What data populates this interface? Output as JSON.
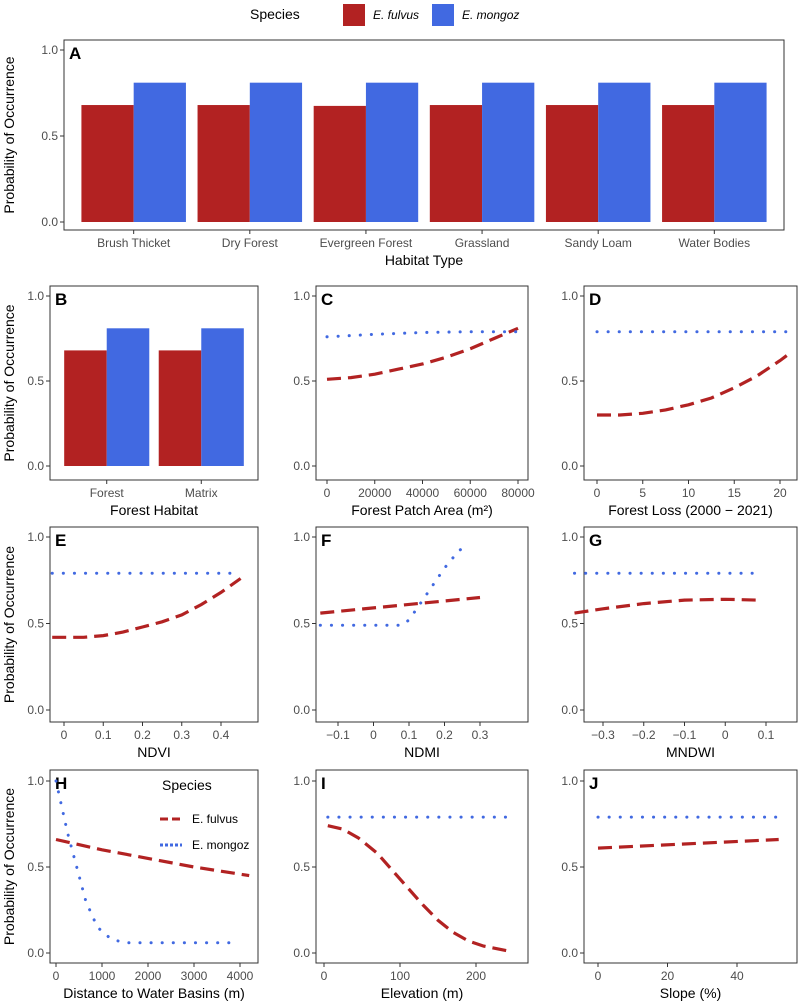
{
  "colors": {
    "E. fulvus": "#B22222",
    "E. mongoz": "#4169E1"
  },
  "legend": {
    "title": "Species",
    "items": [
      "E. fulvus",
      "E. mongoz"
    ],
    "placement": "top"
  },
  "chart_data": [
    {
      "panel": "A",
      "type": "bar",
      "xlabel": "Habitat Type",
      "ylabel": "Probability of Occurrence",
      "ylim": [
        0,
        1
      ],
      "yticks": [
        "0.0",
        "0.5",
        "1.0"
      ],
      "categories": [
        "Brush Thicket",
        "Dry Forest",
        "Evergreen Forest",
        "Grassland",
        "Sandy Loam",
        "Water Bodies"
      ],
      "series": [
        {
          "name": "E. fulvus",
          "values": [
            0.68,
            0.68,
            0.675,
            0.68,
            0.68,
            0.68
          ]
        },
        {
          "name": "E. mongoz",
          "values": [
            0.81,
            0.81,
            0.81,
            0.81,
            0.81,
            0.81
          ]
        }
      ]
    },
    {
      "panel": "B",
      "type": "bar",
      "xlabel": "Forest Habitat",
      "ylabel": "Probability of Occurrence",
      "ylim": [
        0,
        1
      ],
      "yticks": [
        "0.0",
        "0.5",
        "1.0"
      ],
      "categories": [
        "Forest",
        "Matrix"
      ],
      "series": [
        {
          "name": "E. fulvus",
          "values": [
            0.68,
            0.68
          ]
        },
        {
          "name": "E. mongoz",
          "values": [
            0.81,
            0.81
          ]
        }
      ]
    },
    {
      "panel": "C",
      "type": "line",
      "xlabel": "Forest Patch Area (m²)",
      "ylabel": "",
      "ylim": [
        0,
        1
      ],
      "yticks": [
        "0.0",
        "0.5",
        "1.0"
      ],
      "xticks": [
        0,
        20000,
        40000,
        60000,
        80000
      ],
      "series": [
        {
          "name": "E. fulvus",
          "x": [
            0,
            10000,
            20000,
            30000,
            40000,
            50000,
            60000,
            70000,
            80000
          ],
          "y": [
            0.51,
            0.52,
            0.54,
            0.57,
            0.6,
            0.64,
            0.69,
            0.75,
            0.81
          ]
        },
        {
          "name": "E. mongoz",
          "x": [
            0,
            20000,
            40000,
            60000,
            80000
          ],
          "y": [
            0.76,
            0.775,
            0.785,
            0.79,
            0.79
          ]
        }
      ]
    },
    {
      "panel": "D",
      "type": "line",
      "xlabel": "Forest Loss (2000 − 2021)",
      "ylabel": "",
      "ylim": [
        0,
        1
      ],
      "yticks": [
        "0.0",
        "0.5",
        "1.0"
      ],
      "xticks": [
        0,
        5,
        10,
        15,
        20
      ],
      "series": [
        {
          "name": "E. fulvus",
          "x": [
            0,
            2.5,
            5,
            7.5,
            10,
            12.5,
            15,
            17.5,
            20,
            21
          ],
          "y": [
            0.3,
            0.3,
            0.31,
            0.33,
            0.36,
            0.4,
            0.46,
            0.53,
            0.62,
            0.66
          ]
        },
        {
          "name": "E. mongoz",
          "x": [
            0,
            21
          ],
          "y": [
            0.79,
            0.79
          ]
        }
      ]
    },
    {
      "panel": "E",
      "type": "line",
      "xlabel": "NDVI",
      "ylabel": "Probability of Occurrence",
      "ylim": [
        0,
        1
      ],
      "yticks": [
        "0.0",
        "0.5",
        "1.0"
      ],
      "xticks": [
        0.0,
        0.1,
        0.2,
        0.3,
        0.4
      ],
      "series": [
        {
          "name": "E. fulvus",
          "x": [
            -0.03,
            0.05,
            0.1,
            0.15,
            0.2,
            0.25,
            0.3,
            0.35,
            0.4,
            0.45
          ],
          "y": [
            0.42,
            0.42,
            0.43,
            0.45,
            0.48,
            0.51,
            0.55,
            0.61,
            0.68,
            0.76
          ]
        },
        {
          "name": "E. mongoz",
          "x": [
            -0.03,
            0.45
          ],
          "y": [
            0.79,
            0.79
          ]
        }
      ]
    },
    {
      "panel": "F",
      "type": "line",
      "xlabel": "NDMI",
      "ylabel": "",
      "ylim": [
        0,
        1
      ],
      "yticks": [
        "0.0",
        "0.5",
        "1.0"
      ],
      "xticks": [
        -0.1,
        0.0,
        0.1,
        0.2,
        0.3
      ],
      "series": [
        {
          "name": "E. fulvus",
          "x": [
            -0.15,
            0.0,
            0.15,
            0.3
          ],
          "y": [
            0.56,
            0.59,
            0.62,
            0.65
          ]
        },
        {
          "name": "E. mongoz",
          "x": [
            -0.15,
            0.08,
            0.1,
            0.12,
            0.15,
            0.2,
            0.24,
            0.27
          ],
          "y": [
            0.49,
            0.49,
            0.52,
            0.58,
            0.67,
            0.82,
            0.92,
            0.96
          ]
        }
      ]
    },
    {
      "panel": "G",
      "type": "line",
      "xlabel": "MNDWI",
      "ylabel": "",
      "ylim": [
        0,
        1
      ],
      "yticks": [
        "0.0",
        "0.5",
        "1.0"
      ],
      "xticks": [
        -0.3,
        -0.2,
        -0.1,
        0.0,
        0.1
      ],
      "series": [
        {
          "name": "E. fulvus",
          "x": [
            -0.37,
            -0.3,
            -0.2,
            -0.1,
            0.0,
            0.08
          ],
          "y": [
            0.56,
            0.585,
            0.615,
            0.635,
            0.64,
            0.635
          ]
        },
        {
          "name": "E. mongoz",
          "x": [
            -0.37,
            0.08
          ],
          "y": [
            0.79,
            0.79
          ]
        }
      ]
    },
    {
      "panel": "H",
      "type": "line",
      "xlabel": "Distance to Water Basins (m)",
      "ylabel": "Probability of Occurrence",
      "ylim": [
        0,
        1
      ],
      "yticks": [
        "0.0",
        "0.5",
        "1.0"
      ],
      "xticks": [
        0,
        1000,
        2000,
        3000,
        4000
      ],
      "legend": {
        "title": "Species",
        "items": [
          "E. fulvus",
          "E. mongoz"
        ],
        "placement": "top-right"
      },
      "series": [
        {
          "name": "E. fulvus",
          "x": [
            0,
            1000,
            2000,
            3000,
            4200
          ],
          "y": [
            0.66,
            0.6,
            0.55,
            0.5,
            0.45
          ]
        },
        {
          "name": "E. mongoz",
          "x": [
            0,
            100,
            250,
            450,
            650,
            900,
            1200,
            1500,
            2000,
            3900
          ],
          "y": [
            1.0,
            0.88,
            0.7,
            0.5,
            0.3,
            0.15,
            0.08,
            0.06,
            0.06,
            0.06
          ]
        }
      ]
    },
    {
      "panel": "I",
      "type": "line",
      "xlabel": "Elevation (m)",
      "ylabel": "",
      "ylim": [
        0,
        1
      ],
      "yticks": [
        "0.0",
        "0.5",
        "1.0"
      ],
      "xticks": [
        0,
        100,
        200
      ],
      "series": [
        {
          "name": "E. fulvus",
          "x": [
            5,
            25,
            45,
            70,
            90,
            110,
            130,
            150,
            170,
            190,
            210,
            245
          ],
          "y": [
            0.74,
            0.72,
            0.67,
            0.58,
            0.48,
            0.38,
            0.28,
            0.19,
            0.12,
            0.07,
            0.04,
            0.01
          ]
        },
        {
          "name": "E. mongoz",
          "x": [
            5,
            250
          ],
          "y": [
            0.79,
            0.79
          ]
        }
      ]
    },
    {
      "panel": "J",
      "type": "line",
      "xlabel": "Slope (%)",
      "ylabel": "",
      "ylim": [
        0,
        1
      ],
      "yticks": [
        "0.0",
        "0.5",
        "1.0"
      ],
      "xticks": [
        0,
        20,
        40
      ],
      "series": [
        {
          "name": "E. fulvus",
          "x": [
            0,
            52
          ],
          "y": [
            0.61,
            0.66
          ]
        },
        {
          "name": "E. mongoz",
          "x": [
            0,
            52
          ],
          "y": [
            0.79,
            0.79
          ]
        }
      ]
    }
  ]
}
